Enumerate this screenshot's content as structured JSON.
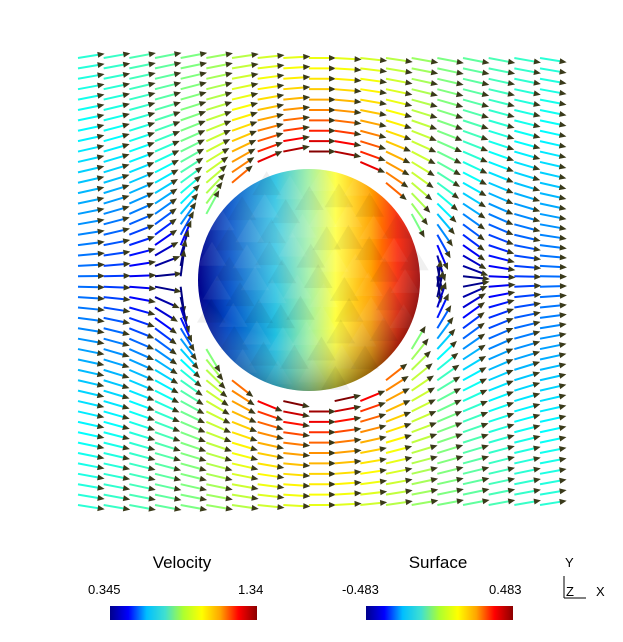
{
  "legends": {
    "velocity": {
      "title": "Velocity",
      "min": "0.345",
      "max": "1.34",
      "colormap": [
        "#00008b",
        "#0000ff",
        "#00bfff",
        "#40e0d0",
        "#adff2f",
        "#ffff00",
        "#ffa500",
        "#ff0000",
        "#8b0000"
      ]
    },
    "surface": {
      "title": "Surface",
      "min": "-0.483",
      "max": "0.483",
      "colormap": [
        "#00008b",
        "#0000ff",
        "#00bfff",
        "#40e0d0",
        "#adff2f",
        "#ffff00",
        "#ffa500",
        "#ff0000",
        "#8b0000"
      ]
    }
  },
  "axes": {
    "y": "Y",
    "z": "Z",
    "x": "X"
  },
  "colors": {
    "background": "#ffffff",
    "arrow_outline": "#333333"
  }
}
